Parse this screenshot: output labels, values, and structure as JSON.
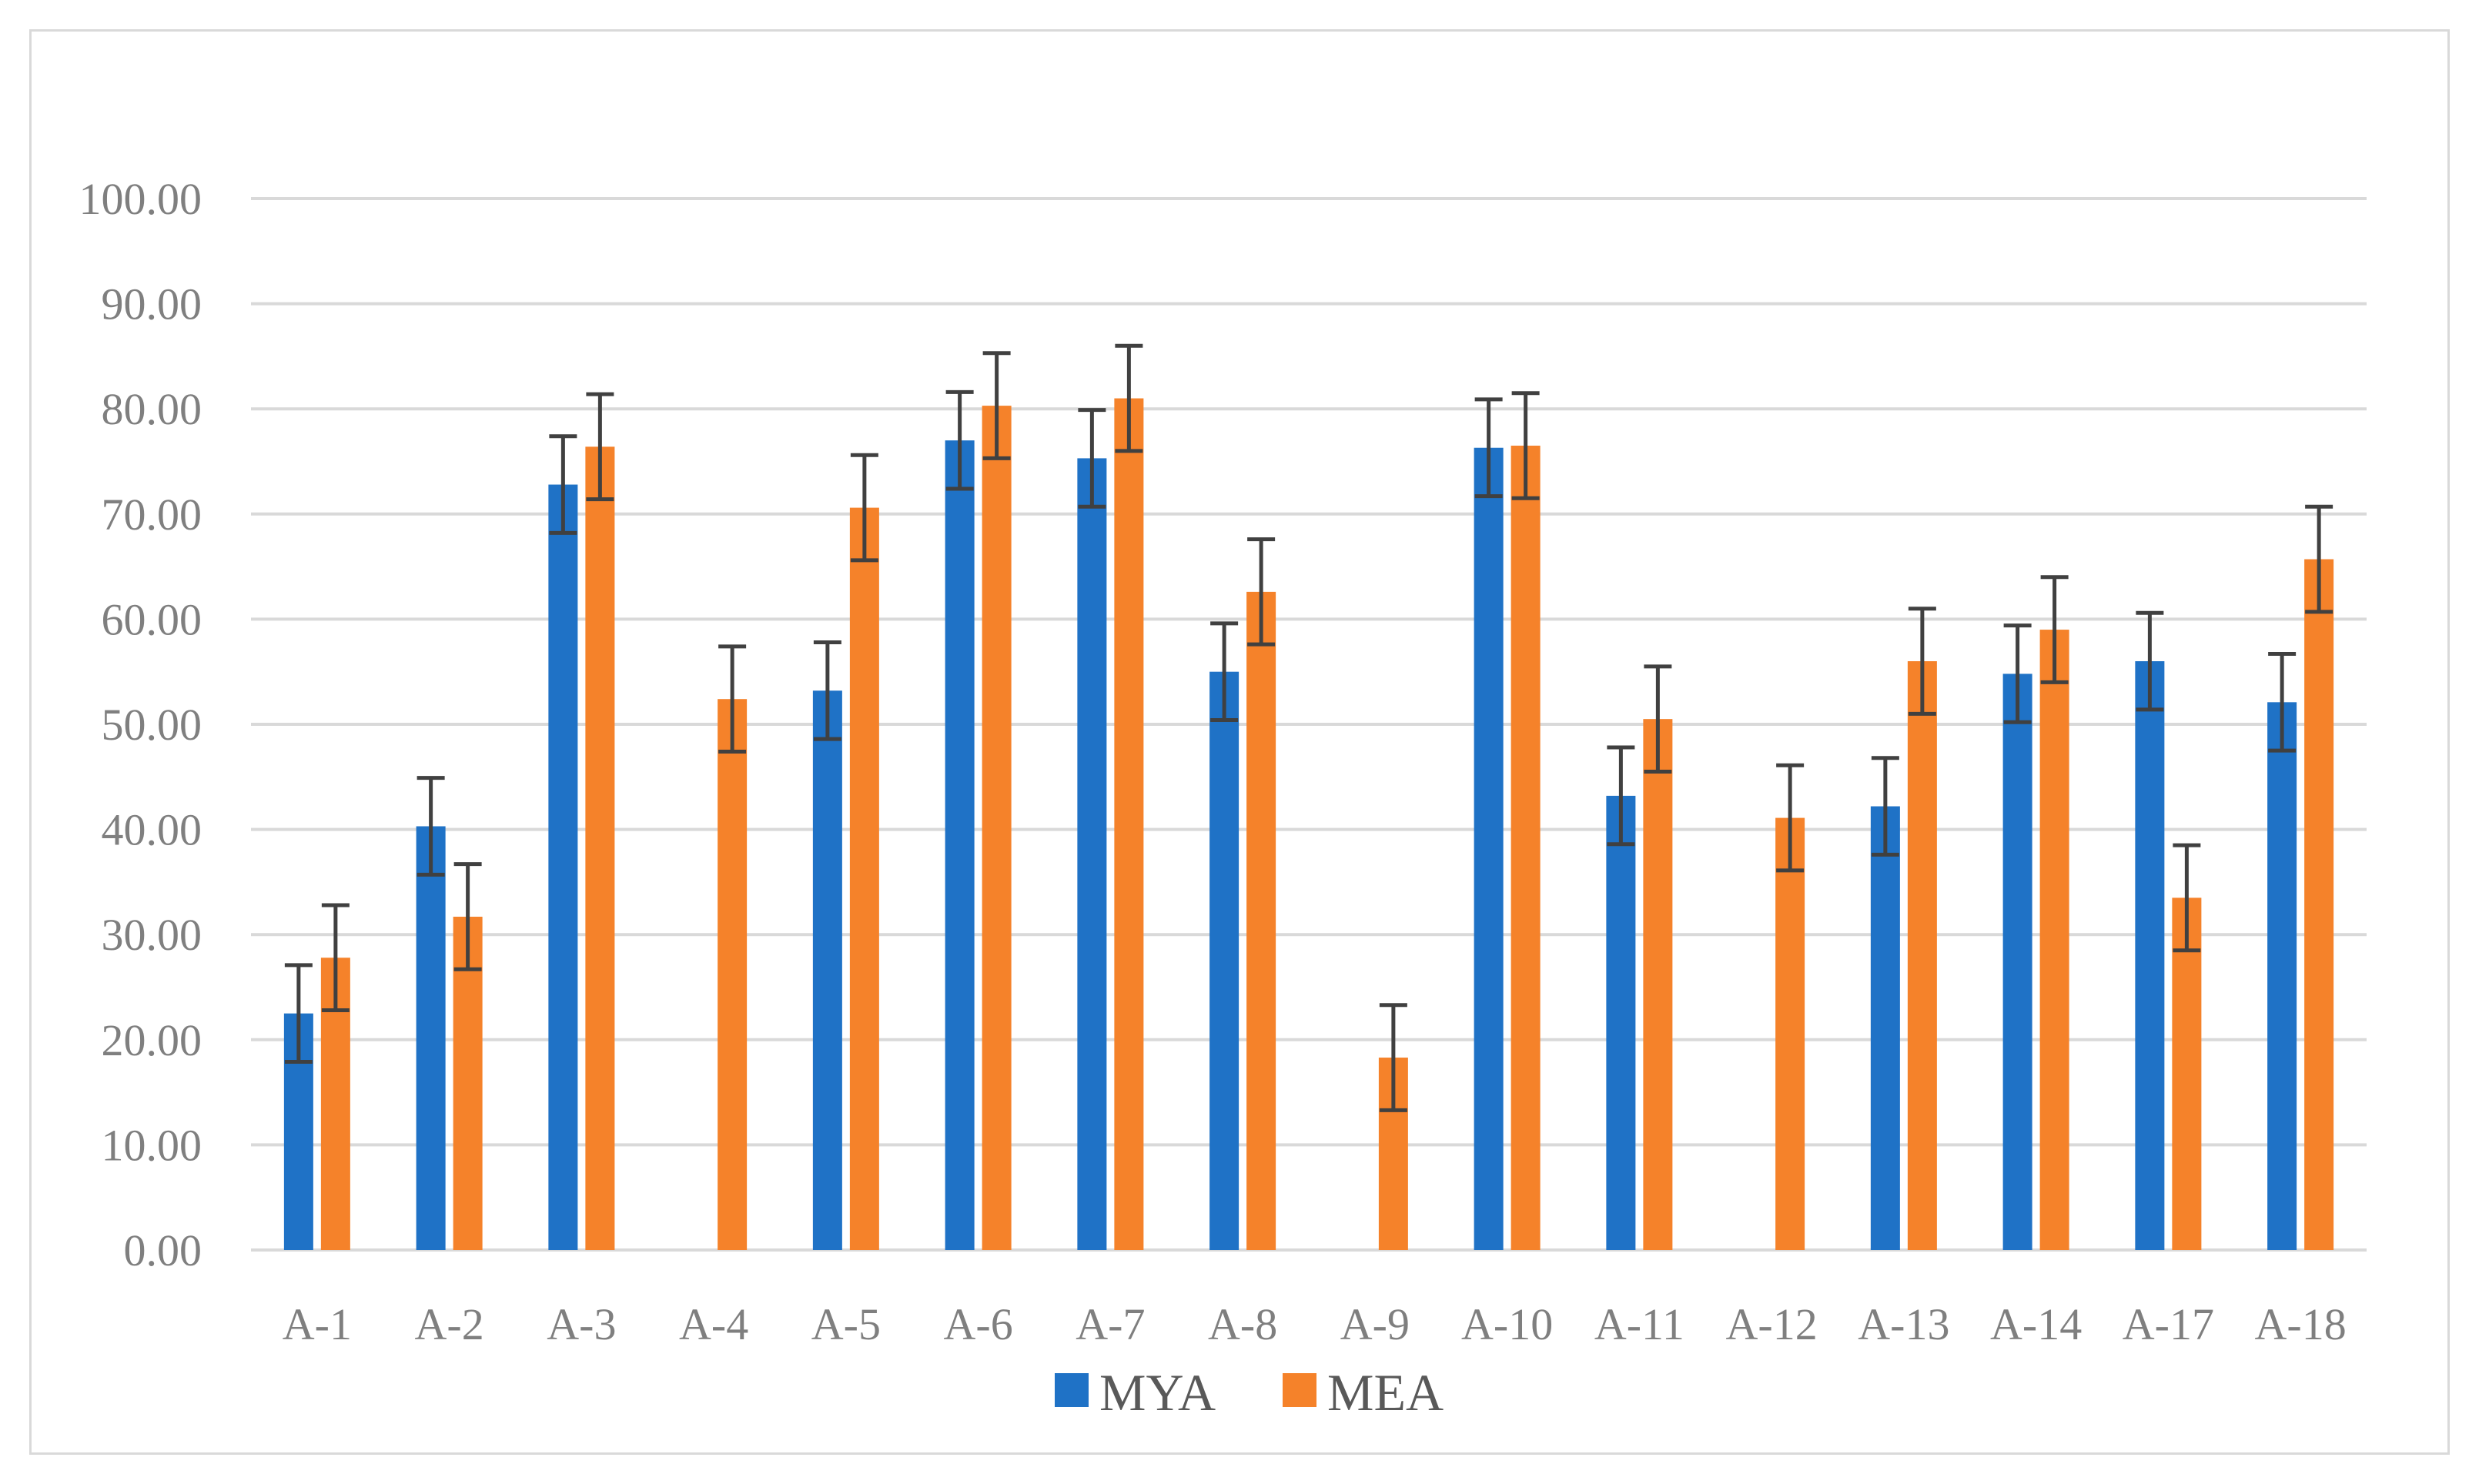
{
  "chart_data": {
    "type": "bar",
    "title": "",
    "xlabel": "",
    "ylabel": "",
    "ylim": [
      0,
      100
    ],
    "y_ticks": [
      "0.00",
      "10.00",
      "20.00",
      "30.00",
      "40.00",
      "50.00",
      "60.00",
      "70.00",
      "80.00",
      "90.00",
      "100.00"
    ],
    "grid": true,
    "legend_position": "bottom",
    "categories": [
      "A-1",
      "A-2",
      "A-3",
      "A-4",
      "A-5",
      "A-6",
      "A-7",
      "A-8",
      "A-9",
      "A-10",
      "A-11",
      "A-12",
      "A-13",
      "A-14",
      "A-17",
      "A-18"
    ],
    "series": [
      {
        "name": "MYA",
        "color": "#1f72c6",
        "values": [
          22.5,
          40.3,
          72.8,
          null,
          53.2,
          77.0,
          75.3,
          55.0,
          null,
          76.3,
          43.2,
          null,
          42.2,
          54.8,
          56.0,
          52.1
        ],
        "error": [
          4.6,
          4.6,
          4.6,
          null,
          4.6,
          4.6,
          4.6,
          4.6,
          null,
          4.6,
          4.6,
          null,
          4.6,
          4.6,
          4.6,
          4.6
        ]
      },
      {
        "name": "MEA",
        "color": "#f5822a",
        "values": [
          27.8,
          31.7,
          76.4,
          52.4,
          70.6,
          80.3,
          81.0,
          62.6,
          18.3,
          76.5,
          50.5,
          41.1,
          56.0,
          59.0,
          33.5,
          65.7
        ],
        "error": [
          5.0,
          5.0,
          5.0,
          5.0,
          5.0,
          5.0,
          5.0,
          5.0,
          5.0,
          5.0,
          5.0,
          5.0,
          5.0,
          5.0,
          5.0,
          5.0
        ]
      }
    ],
    "error_bar_color": "#404040",
    "gridline_color": "#d9d9d9"
  }
}
